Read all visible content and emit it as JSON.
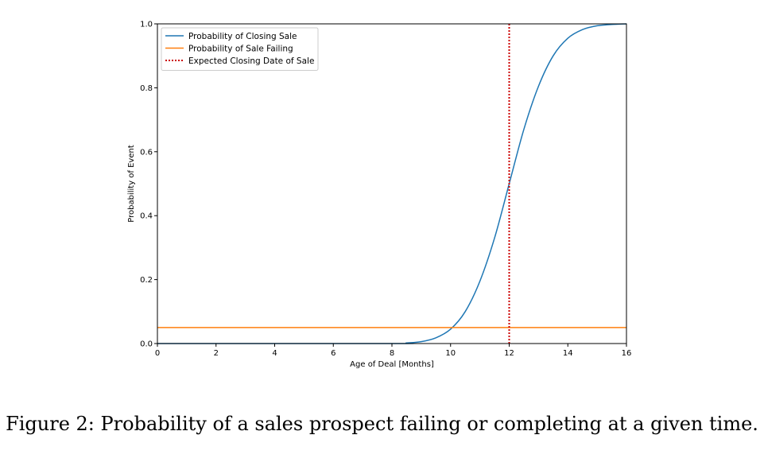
{
  "caption": "Figure 2: Probability of a sales prospect failing or completing at a given time.",
  "chart_data": {
    "type": "line",
    "title": "",
    "xlabel": "Age of Deal [Months]",
    "ylabel": "Probability of Event",
    "xlim": [
      0,
      16
    ],
    "ylim": [
      0,
      1
    ],
    "xticks": [
      "0",
      "2",
      "4",
      "6",
      "8",
      "10",
      "12",
      "14",
      "16"
    ],
    "yticks": [
      "0.0",
      "0.2",
      "0.4",
      "0.6",
      "0.8",
      "1.0"
    ],
    "grid": false,
    "legend_position": "top-left",
    "series": [
      {
        "name": "Probability of Closing Sale",
        "color": "#1f77b4",
        "style": "solid",
        "x": [
          0,
          8,
          8.5,
          9,
          9.5,
          10,
          10.5,
          11,
          11.5,
          12,
          12.5,
          13,
          13.5,
          14,
          14.5,
          15,
          15.5,
          16
        ],
        "y": [
          0,
          0.0,
          0.002,
          0.006,
          0.018,
          0.045,
          0.1,
          0.195,
          0.33,
          0.5,
          0.67,
          0.805,
          0.9,
          0.955,
          0.982,
          0.994,
          0.998,
          1.0
        ]
      },
      {
        "name": "Probability of Sale Failing",
        "color": "#ff7f0e",
        "style": "solid",
        "x": [
          0,
          16
        ],
        "y": [
          0.05,
          0.05
        ]
      },
      {
        "name": "Expected Closing Date of Sale",
        "color": "#cc0000",
        "style": "dotted",
        "x": [
          12,
          12
        ],
        "y": [
          0,
          1
        ]
      }
    ]
  }
}
